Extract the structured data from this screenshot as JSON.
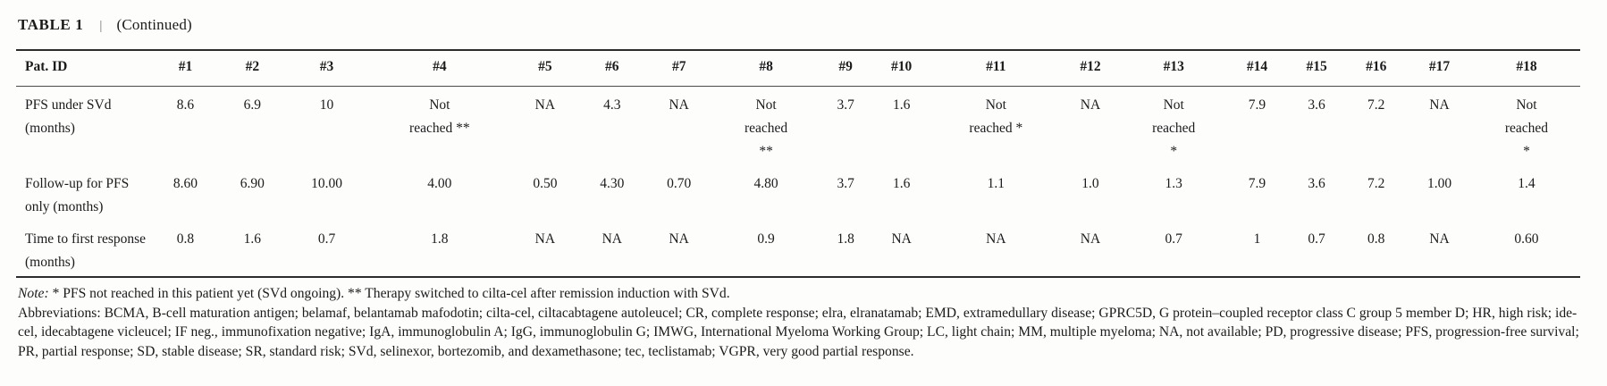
{
  "title": {
    "label": "TABLE 1",
    "separator": "|",
    "continued": "(Continued)"
  },
  "table": {
    "header": [
      "Pat. ID",
      "#1",
      "#2",
      "#3",
      "#4",
      "#5",
      "#6",
      "#7",
      "#8",
      "#9",
      "#10",
      "#11",
      "#12",
      "#13",
      "#14",
      "#15",
      "#16",
      "#17",
      "#18"
    ],
    "rows": [
      {
        "label": "PFS under SVd (months)",
        "values": [
          "8.6",
          "6.9",
          "10",
          "Not\nreached **",
          "NA",
          "4.3",
          "NA",
          "Not\nreached\n**",
          "3.7",
          "1.6",
          "Not\nreached *",
          "NA",
          "Not\nreached\n*",
          "7.9",
          "3.6",
          "7.2",
          "NA",
          "Not\nreached\n*"
        ]
      },
      {
        "label": "Follow-up for PFS only (months)",
        "values": [
          "8.60",
          "6.90",
          "10.00",
          "4.00",
          "0.50",
          "4.30",
          "0.70",
          "4.80",
          "3.7",
          "1.6",
          "1.1",
          "1.0",
          "1.3",
          "7.9",
          "3.6",
          "7.2",
          "1.00",
          "1.4"
        ]
      },
      {
        "label": "Time to first response (months)",
        "values": [
          "0.8",
          "1.6",
          "0.7",
          "1.8",
          "NA",
          "NA",
          "NA",
          "0.9",
          "1.8",
          "NA",
          "NA",
          "NA",
          "0.7",
          "1",
          "0.7",
          "0.8",
          "NA",
          "0.60"
        ]
      }
    ]
  },
  "footnotes": {
    "note_label": "Note:",
    "note_text": "* PFS not reached in this patient yet (SVd ongoing). ** Therapy switched to cilta-cel after remission induction with SVd.",
    "abbreviations": "Abbreviations: BCMA, B-cell maturation antigen; belamaf, belantamab mafodotin; cilta-cel, ciltacabtagene autoleucel; CR, complete response; elra, elranatamab; EMD, extramedullary disease; GPRC5D, G protein–coupled receptor class C group 5 member D; HR, high risk; ide-cel, idecabtagene vicleucel; IF neg., immunofixation negative; IgA, immunoglobulin A; IgG, immunoglobulin G; IMWG, International Myeloma Working Group; LC, light chain; MM, multiple myeloma; NA, not available; PD, progressive disease; PFS, progression-free survival; PR, partial response; SD, stable disease; SR, standard risk; SVd, selinexor, bortezomib, and dexamethasone; tec, teclistamab; VGPR, very good partial response."
  },
  "colors": {
    "text": "#1b1b1b",
    "rule": "#2c2c2c",
    "background": "#fdfdfc"
  }
}
